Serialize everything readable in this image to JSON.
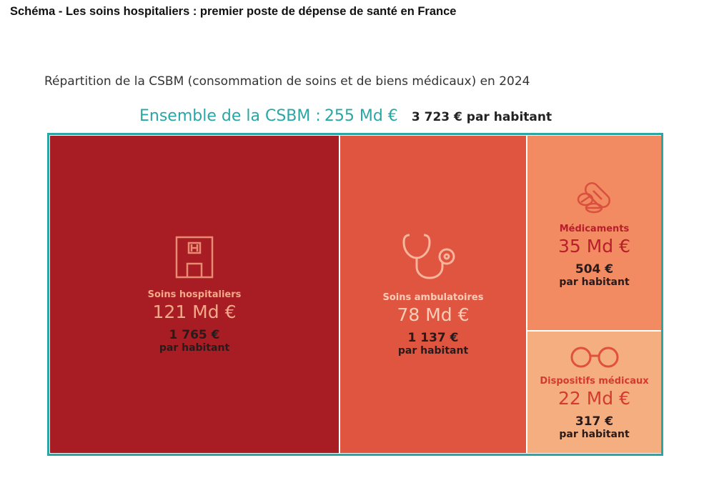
{
  "page_title": "Schéma - Les soins hospitaliers : premier poste de dépense de santé en France",
  "chart_data": {
    "type": "treemap",
    "title": "Répartition de la CSBM (consommation de soins et de biens médicaux) en 2024",
    "total": {
      "label": "Ensemble de la CSBM :",
      "value_text": "255 Md €",
      "per_capita_text": "3 723 € par habitant",
      "value": 255,
      "per_capita": 3723
    },
    "unit": "Md €",
    "border_color": "#2aa6a4",
    "items": [
      {
        "name": "Soins hospitaliers",
        "value": 121,
        "value_text": "121 Md €",
        "per_capita": 1765,
        "per_capita_text": "1 765 €",
        "per_capita_label": "par habitant",
        "color": "#a81c24",
        "icon": "hospital-icon"
      },
      {
        "name": "Soins ambulatoires",
        "value": 78,
        "value_text": "78 Md €",
        "per_capita": 1137,
        "per_capita_text": "1 137 €",
        "per_capita_label": "par habitant",
        "color": "#e05540",
        "icon": "stethoscope-icon"
      },
      {
        "name": "Médicaments",
        "value": 35,
        "value_text": "35 Md €",
        "per_capita": 504,
        "per_capita_text": "504 €",
        "per_capita_label": "par habitant",
        "color": "#f28a62",
        "icon": "pills-icon"
      },
      {
        "name": "Dispositifs médicaux",
        "value": 22,
        "value_text": "22 Md €",
        "per_capita": 317,
        "per_capita_text": "317 €",
        "per_capita_label": "par habitant",
        "color": "#f5ae80",
        "icon": "glasses-icon"
      }
    ]
  }
}
